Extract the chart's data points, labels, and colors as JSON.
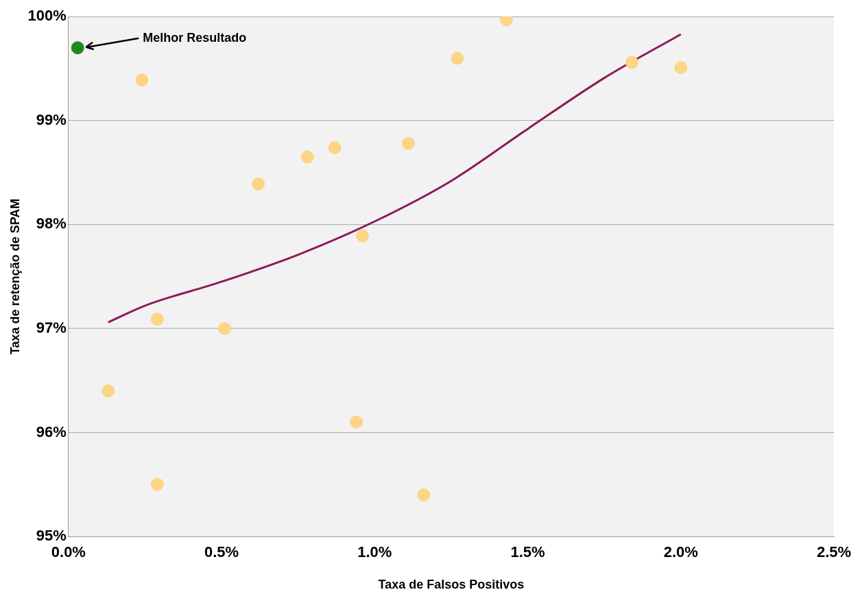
{
  "chart_data": {
    "type": "scatter",
    "xlabel": "Taxa de Falsos Positivos",
    "ylabel": "Taxa de retenção de SPAM",
    "series": [
      {
        "color": "#fcd586",
        "marker": "circle",
        "x": [
          0.24,
          0.13,
          0.29,
          0.29,
          0.51,
          0.62,
          0.78,
          0.87,
          0.96,
          0.94,
          1.11,
          1.16,
          1.27,
          1.43,
          1.84,
          2.0
        ],
        "values": [
          99.39,
          96.4,
          97.09,
          95.5,
          97.0,
          98.39,
          98.65,
          98.74,
          97.89,
          96.1,
          98.78,
          95.4,
          99.6,
          99.97,
          99.56,
          99.51
        ]
      },
      {
        "color": "#1e8a1e",
        "marker": "circle",
        "x": [
          0.03
        ],
        "values": [
          99.7
        ]
      },
      {
        "type": "line",
        "color": "#8b1a5a",
        "marker": "none",
        "x": [
          0.13,
          0.25,
          0.5,
          0.75,
          1.0,
          1.25,
          1.5,
          1.75,
          2.0
        ],
        "values": [
          97.06,
          97.22,
          97.45,
          97.71,
          98.03,
          98.42,
          98.92,
          99.41,
          99.83
        ]
      }
    ],
    "xlim": [
      0,
      2.5
    ],
    "xticks": [
      {
        "value": 0,
        "label": "0.0%"
      },
      {
        "value": 0.5,
        "label": "0.5%"
      },
      {
        "value": 1,
        "label": "1.0%"
      },
      {
        "value": 1.5,
        "label": "1.5%"
      },
      {
        "value": 2,
        "label": "2.0%"
      },
      {
        "value": 2.5,
        "label": "2.5%"
      }
    ],
    "ylim": [
      95,
      100
    ],
    "yticks": [
      {
        "value": 95,
        "label": "95%"
      },
      {
        "value": 96,
        "label": "96%"
      },
      {
        "value": 97,
        "label": "97%"
      },
      {
        "value": 98,
        "label": "98%"
      },
      {
        "value": 99,
        "label": "99%"
      },
      {
        "value": 100,
        "label": "100%"
      }
    ],
    "grid": "y",
    "legend": false,
    "annotations": [
      "Melhor Resultado"
    ]
  }
}
